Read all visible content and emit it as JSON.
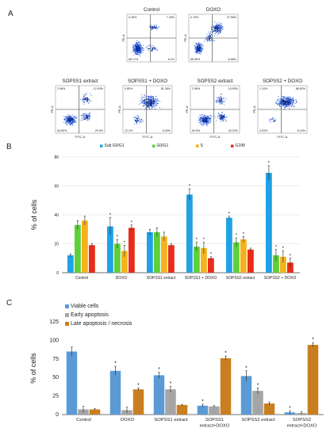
{
  "panels": {
    "a_label": "A",
    "b_label": "B",
    "c_label": "C"
  },
  "colors": {
    "dot": "#2a5fd8",
    "dot_dense": "#0d2f9a",
    "quad_line": "#333333",
    "sub": "#1fa2e6",
    "g0": "#5fcf3a",
    "s": "#f4b21b",
    "g2": "#e82c1a",
    "viable": "#5b9bd5",
    "early": "#a5a5a5",
    "late": "#c97f1f"
  },
  "flow": {
    "plots": [
      {
        "title": "Control",
        "ul": "0.49%",
        "ur": "7.49%",
        "ll": "85.17%",
        "lr": "6.1%",
        "ylabel": "PE-A",
        "xlabel": "",
        "pattern": "control"
      },
      {
        "title": "DOXO",
        "ul": "0.75%",
        "ur": "37.56%",
        "ll": "55.30%",
        "lr": "6.66%",
        "ylabel": "PE-A",
        "xlabel": "",
        "pattern": "doxo"
      },
      {
        "title": "SOPSS1 extract",
        "ul": "2.98%",
        "ur": "12.93%",
        "ll": "54.80%",
        "lr": "29.3%",
        "ylabel": "PE-A",
        "xlabel": "FITC-A",
        "pattern": "sop1"
      },
      {
        "title": "SOPSS1 + DOXO",
        "ul": "0.80%",
        "ur": "81.36%",
        "ll": "12.2%",
        "lr": "6.00%",
        "ylabel": "PE-A",
        "xlabel": "FITC-A",
        "pattern": "sop1doxo"
      },
      {
        "title": "SOPSS2 extract",
        "ul": "2.98%",
        "ur": "15.90%",
        "ll": "52.8%",
        "lr": "30.22%",
        "ylabel": "PE-A",
        "xlabel": "FITC-A",
        "pattern": "sop2"
      },
      {
        "title": "SOPSS2 + DOXO",
        "ul": "1.10%",
        "ur": "88.82%",
        "ll": "4.03%",
        "lr": "6.10%",
        "ylabel": "PE-A",
        "xlabel": "FITC-A",
        "pattern": "sop2doxo"
      }
    ]
  },
  "chart_data": [
    {
      "type": "bar",
      "title": "",
      "xlabel": "",
      "ylabel": "% of cells",
      "ylim": [
        0,
        80
      ],
      "yticks": [
        "0",
        "20",
        "40",
        "60",
        "80"
      ],
      "categories": [
        "Control",
        "DOXO",
        "SOPSS1 extract",
        "SOPSS1 + DOXO",
        "SOPSS2 extract",
        "SOPSS2 + DOXO"
      ],
      "legend_position": "top",
      "grid": true,
      "series": [
        {
          "name": "Sub G0/G1",
          "values": [
            12,
            32,
            28,
            54,
            38,
            69
          ],
          "errors": [
            1,
            6,
            2,
            4,
            1,
            5
          ],
          "stars": [
            false,
            true,
            false,
            true,
            true,
            true
          ]
        },
        {
          "name": "G0/G1",
          "values": [
            33,
            20,
            28,
            18,
            21,
            12
          ],
          "errors": [
            3,
            3,
            3,
            3,
            3,
            4
          ],
          "stars": [
            false,
            true,
            false,
            true,
            true,
            true
          ]
        },
        {
          "name": "S",
          "values": [
            36,
            15,
            25,
            17,
            23,
            11
          ],
          "errors": [
            3,
            4,
            3,
            4,
            2,
            4
          ],
          "stars": [
            false,
            true,
            false,
            true,
            true,
            true
          ]
        },
        {
          "name": "G2/M",
          "values": [
            19,
            31,
            19,
            10,
            16,
            7
          ],
          "errors": [
            1,
            2,
            1,
            1,
            1,
            3
          ],
          "stars": [
            false,
            true,
            false,
            true,
            false,
            true
          ]
        }
      ]
    },
    {
      "type": "bar",
      "title": "",
      "xlabel": "",
      "ylabel": "% of cells",
      "ylim": [
        0,
        125
      ],
      "yticks": [
        "0",
        "25",
        "50",
        "75",
        "100",
        "125"
      ],
      "categories": [
        "Control",
        "DOXO",
        "SOPSS1 extract",
        "SOPSS1 extract+DOXO",
        "SOPSS2 extract",
        "SOPSS2 extract+DOXO"
      ],
      "category_lines": [
        [
          "Control"
        ],
        [
          "DOXO"
        ],
        [
          "SOPSS1 extract"
        ],
        [
          "SOPSS1",
          "extract+DOXO"
        ],
        [
          "SOPSS2 extract"
        ],
        [
          "SOPSS2",
          "extract+DOXO"
        ]
      ],
      "legend_position": "top-left",
      "grid": false,
      "series": [
        {
          "name": "Viable cells",
          "values": [
            85,
            59,
            53,
            12,
            52,
            3
          ],
          "errors": [
            6,
            6,
            4,
            2,
            7,
            2
          ],
          "stars": [
            false,
            true,
            true,
            true,
            true,
            true
          ]
        },
        {
          "name": "Early apoptosis",
          "values": [
            7,
            6,
            34,
            11,
            32,
            2
          ],
          "errors": [
            4,
            4,
            4,
            1,
            4,
            2
          ],
          "stars": [
            false,
            false,
            true,
            false,
            true,
            false
          ]
        },
        {
          "name": "Late apoptosis / necrosis",
          "values": [
            7,
            34,
            13,
            76,
            15,
            94
          ],
          "errors": [
            1,
            2,
            0.5,
            3,
            2,
            3
          ],
          "stars": [
            false,
            true,
            false,
            true,
            false,
            true
          ]
        }
      ]
    }
  ]
}
